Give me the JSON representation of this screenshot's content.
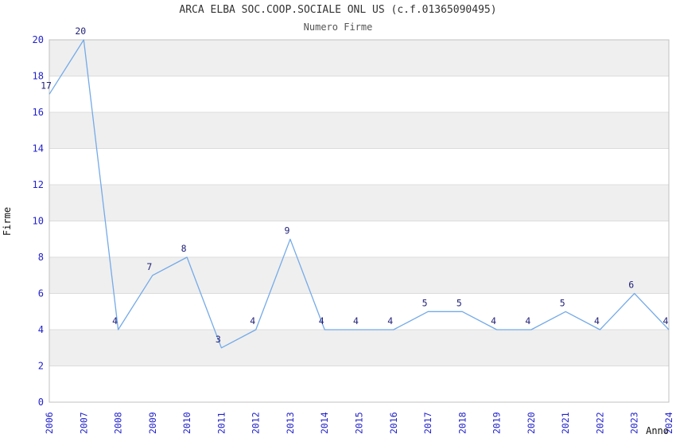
{
  "page": {
    "title": "ARCA ELBA SOC.COOP.SOCIALE ONL US (c.f.01365090495)",
    "subtitle": "Numero Firme"
  },
  "chart_data": {
    "type": "line",
    "title": "ARCA ELBA SOC.COOP.SOCIALE ONL US (c.f.01365090495)",
    "subtitle": "Numero Firme",
    "xlabel": "Anno",
    "ylabel": "Firme",
    "x": [
      "2006",
      "2007",
      "2008",
      "2009",
      "2010",
      "2011",
      "2012",
      "2013",
      "2014",
      "2015",
      "2016",
      "2017",
      "2018",
      "2019",
      "2020",
      "2021",
      "2022",
      "2023",
      "2024"
    ],
    "values": [
      17,
      20,
      4,
      7,
      8,
      3,
      4,
      9,
      4,
      4,
      4,
      5,
      5,
      4,
      4,
      5,
      4,
      6,
      4
    ],
    "point_labels": [
      "17",
      "20",
      "4",
      "7",
      "8",
      "3",
      "4",
      "9",
      "4",
      "4",
      "4",
      "5",
      "5",
      "4",
      "4",
      "5",
      "4",
      "6",
      "4"
    ],
    "ylim": [
      0,
      20
    ],
    "ytick_step": 2,
    "grid": "horizontal",
    "banding": "alternating-2-unit-gray-bands",
    "legend": "none",
    "colors": {
      "line": "#74aae8",
      "tick_label": "#2222cc",
      "data_label": "#22227a",
      "band": "#efefef",
      "gridline": "#dcdcdc",
      "plot_border": "#c0c0c0",
      "title": "#333333",
      "subtitle": "#555555",
      "axis_title": "#111111",
      "background": "#ffffff"
    }
  }
}
